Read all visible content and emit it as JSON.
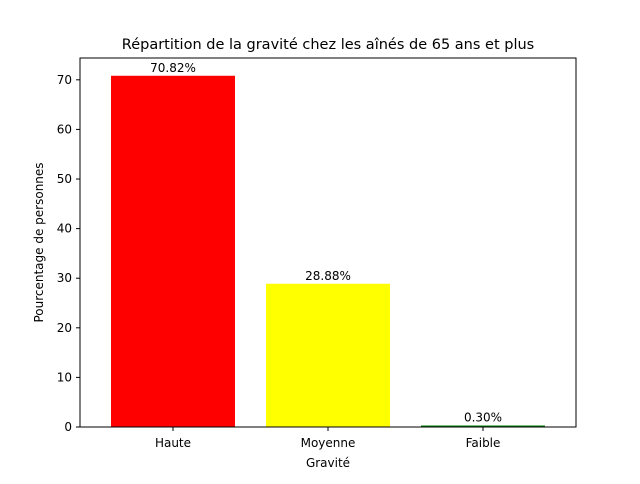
{
  "chart_data": {
    "type": "bar",
    "title": "Répartition de la gravité chez les aînés de 65 ans et plus",
    "xlabel": "Gravité",
    "ylabel": "Pourcentage de personnes",
    "categories": [
      "Haute",
      "Moyenne",
      "Faible"
    ],
    "values": [
      70.82,
      28.88,
      0.3
    ],
    "value_labels": [
      "70.82%",
      "28.88%",
      "0.30%"
    ],
    "colors": [
      "#ff0000",
      "#ffff00",
      "#008000"
    ],
    "ylim": [
      0,
      74.4
    ],
    "yticks": [
      0,
      10,
      20,
      30,
      40,
      50,
      60,
      70
    ],
    "grid": false,
    "legend": "none"
  }
}
